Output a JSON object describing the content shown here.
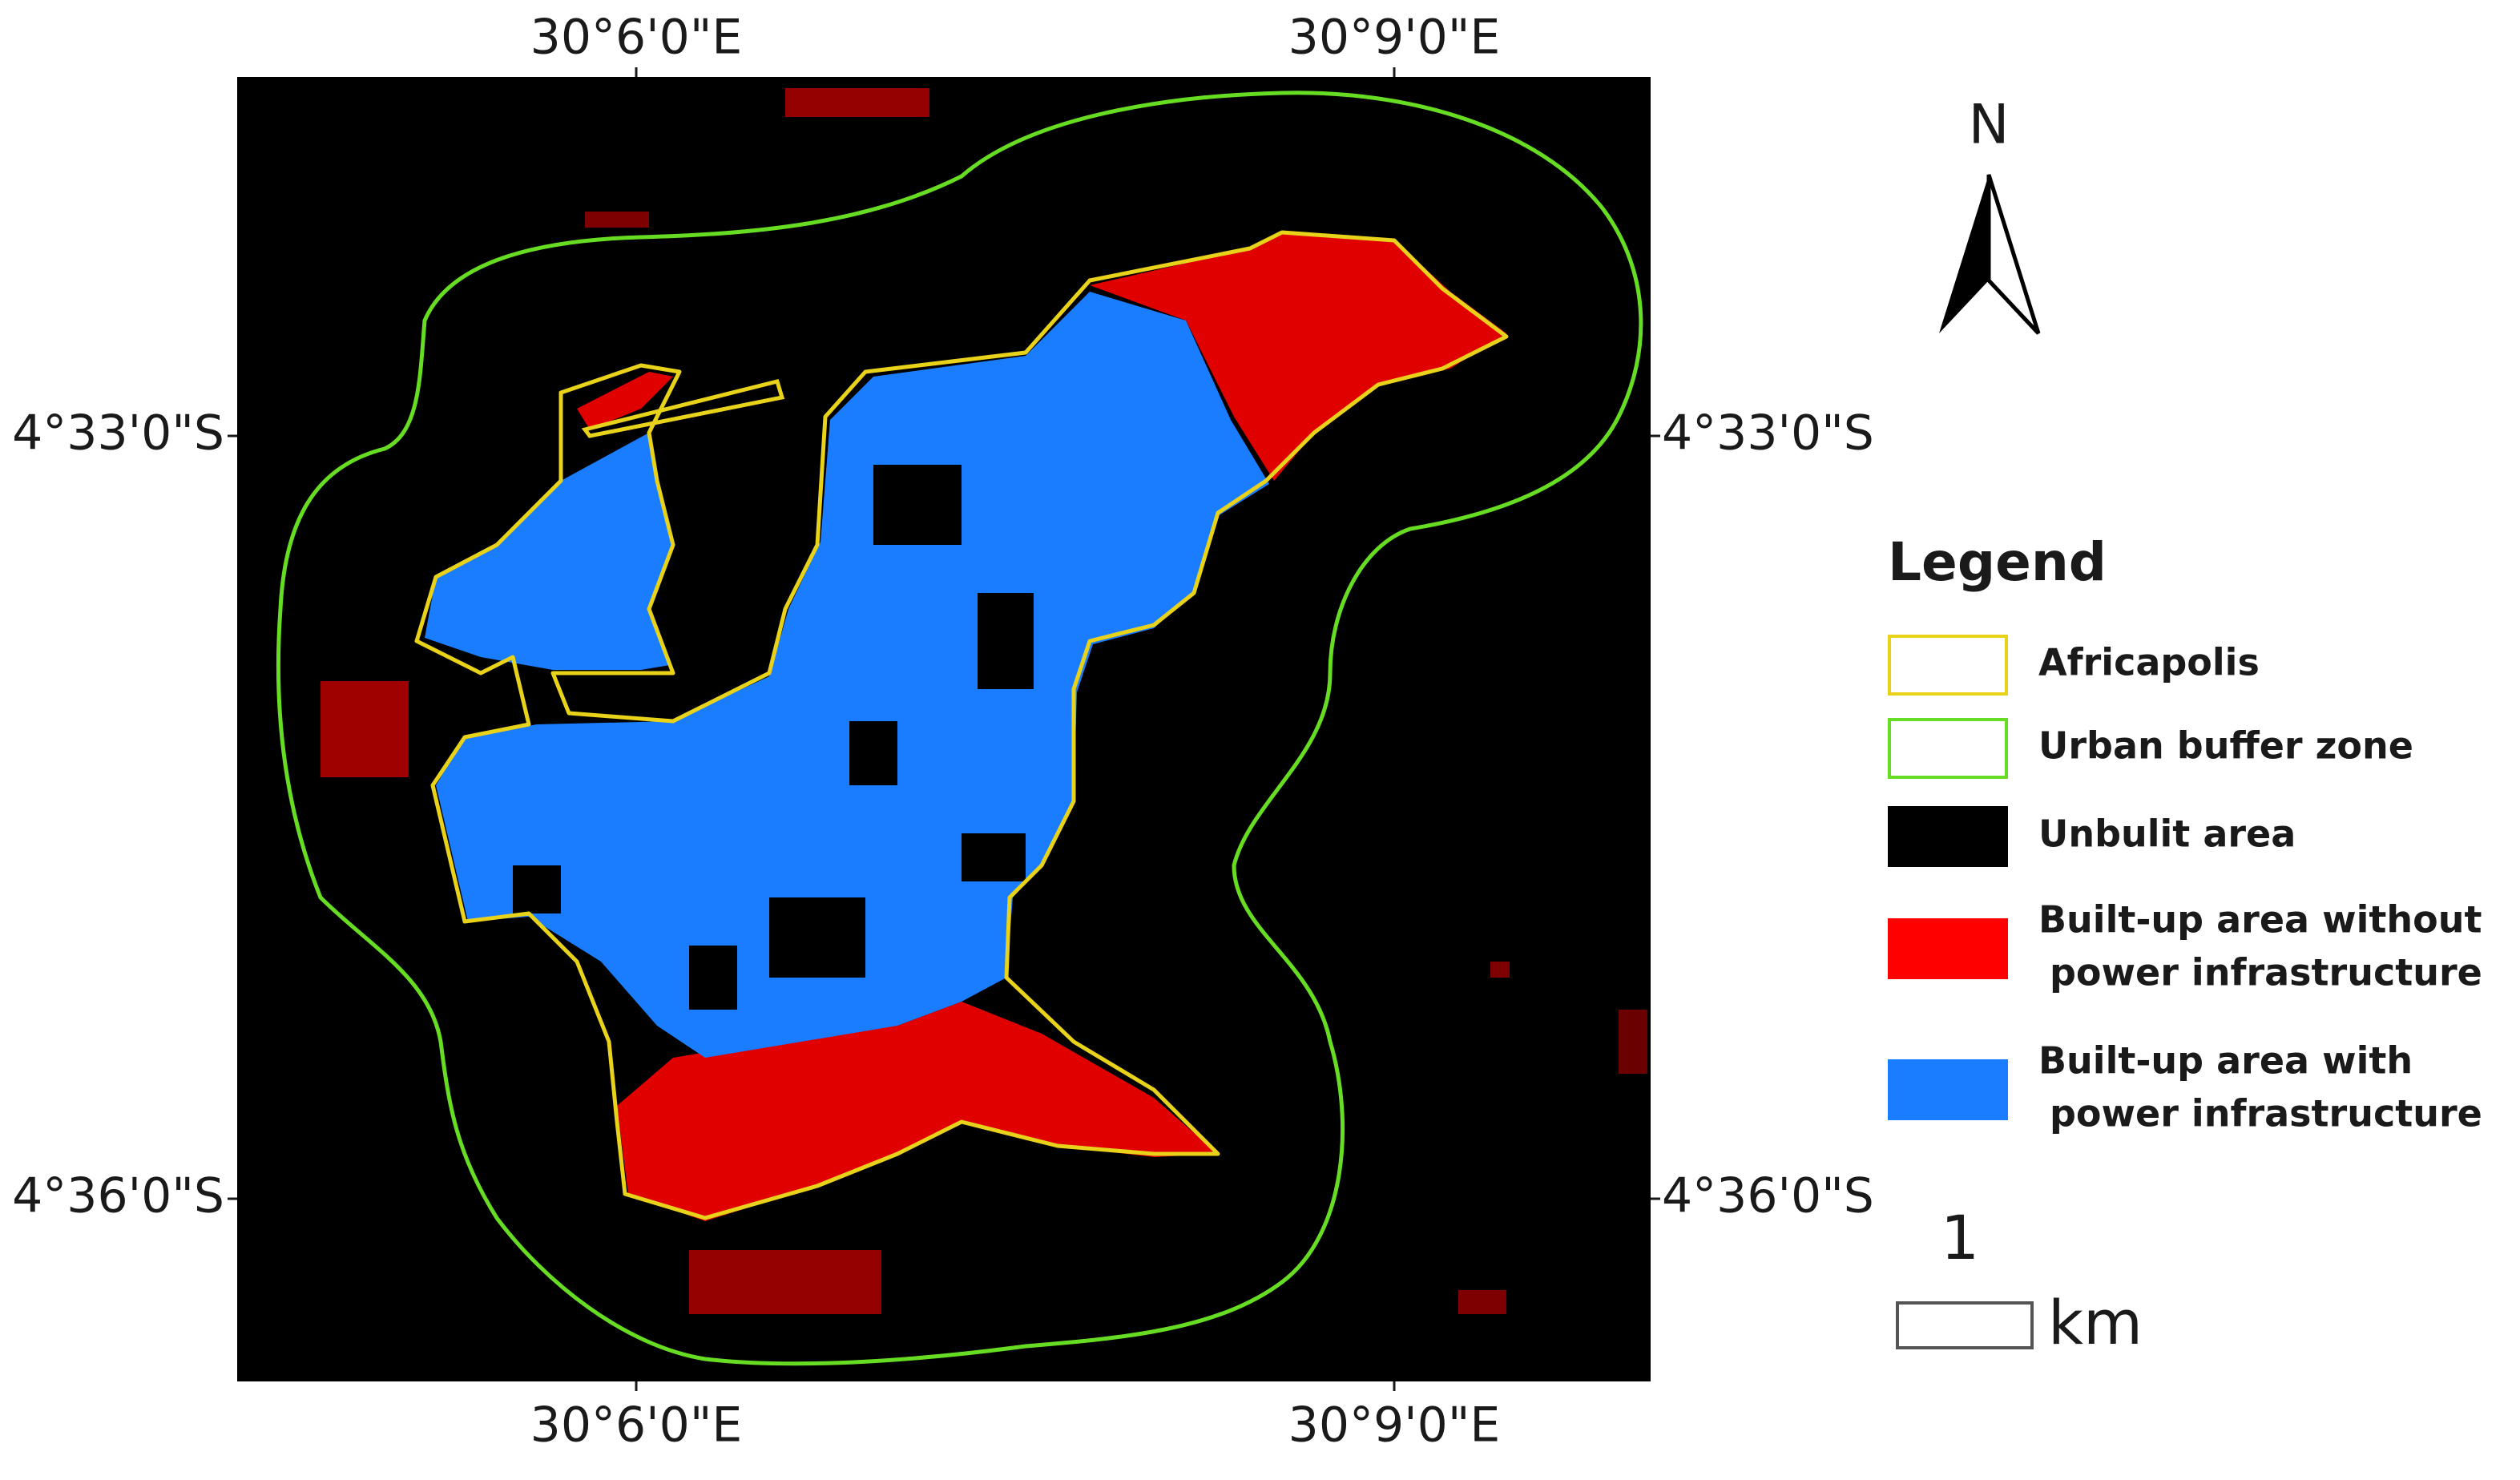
{
  "coordinates": {
    "top": [
      "30°6'0\"E",
      "30°9'0\"E"
    ],
    "bottom": [
      "30°6'0\"E",
      "30°9'0\"E"
    ],
    "left": [
      "4°33'0\"S",
      "4°36'0\"S"
    ],
    "right": [
      "4°33'0\"S",
      "4°36'0\"S"
    ]
  },
  "north_arrow": "N",
  "legend": {
    "title": "Legend",
    "items": [
      {
        "lines": [
          "Africapolis"
        ],
        "fill": "#ffffff",
        "stroke": "#e8d21a"
      },
      {
        "lines": [
          "Urban buffer zone"
        ],
        "fill": "#ffffff",
        "stroke": "#66dd22"
      },
      {
        "lines": [
          "Unbulit area"
        ],
        "fill": "#000000",
        "stroke": "#000000"
      },
      {
        "lines": [
          "Built-up area without",
          "power infrastructure"
        ],
        "fill": "#ff0000",
        "stroke": "#ff0000"
      },
      {
        "lines": [
          "Built-up area with",
          "power infrastructure"
        ],
        "fill": "#1a7cff",
        "stroke": "#1a7cff"
      }
    ]
  },
  "scale_bar": {
    "value": "1",
    "unit": "km"
  }
}
